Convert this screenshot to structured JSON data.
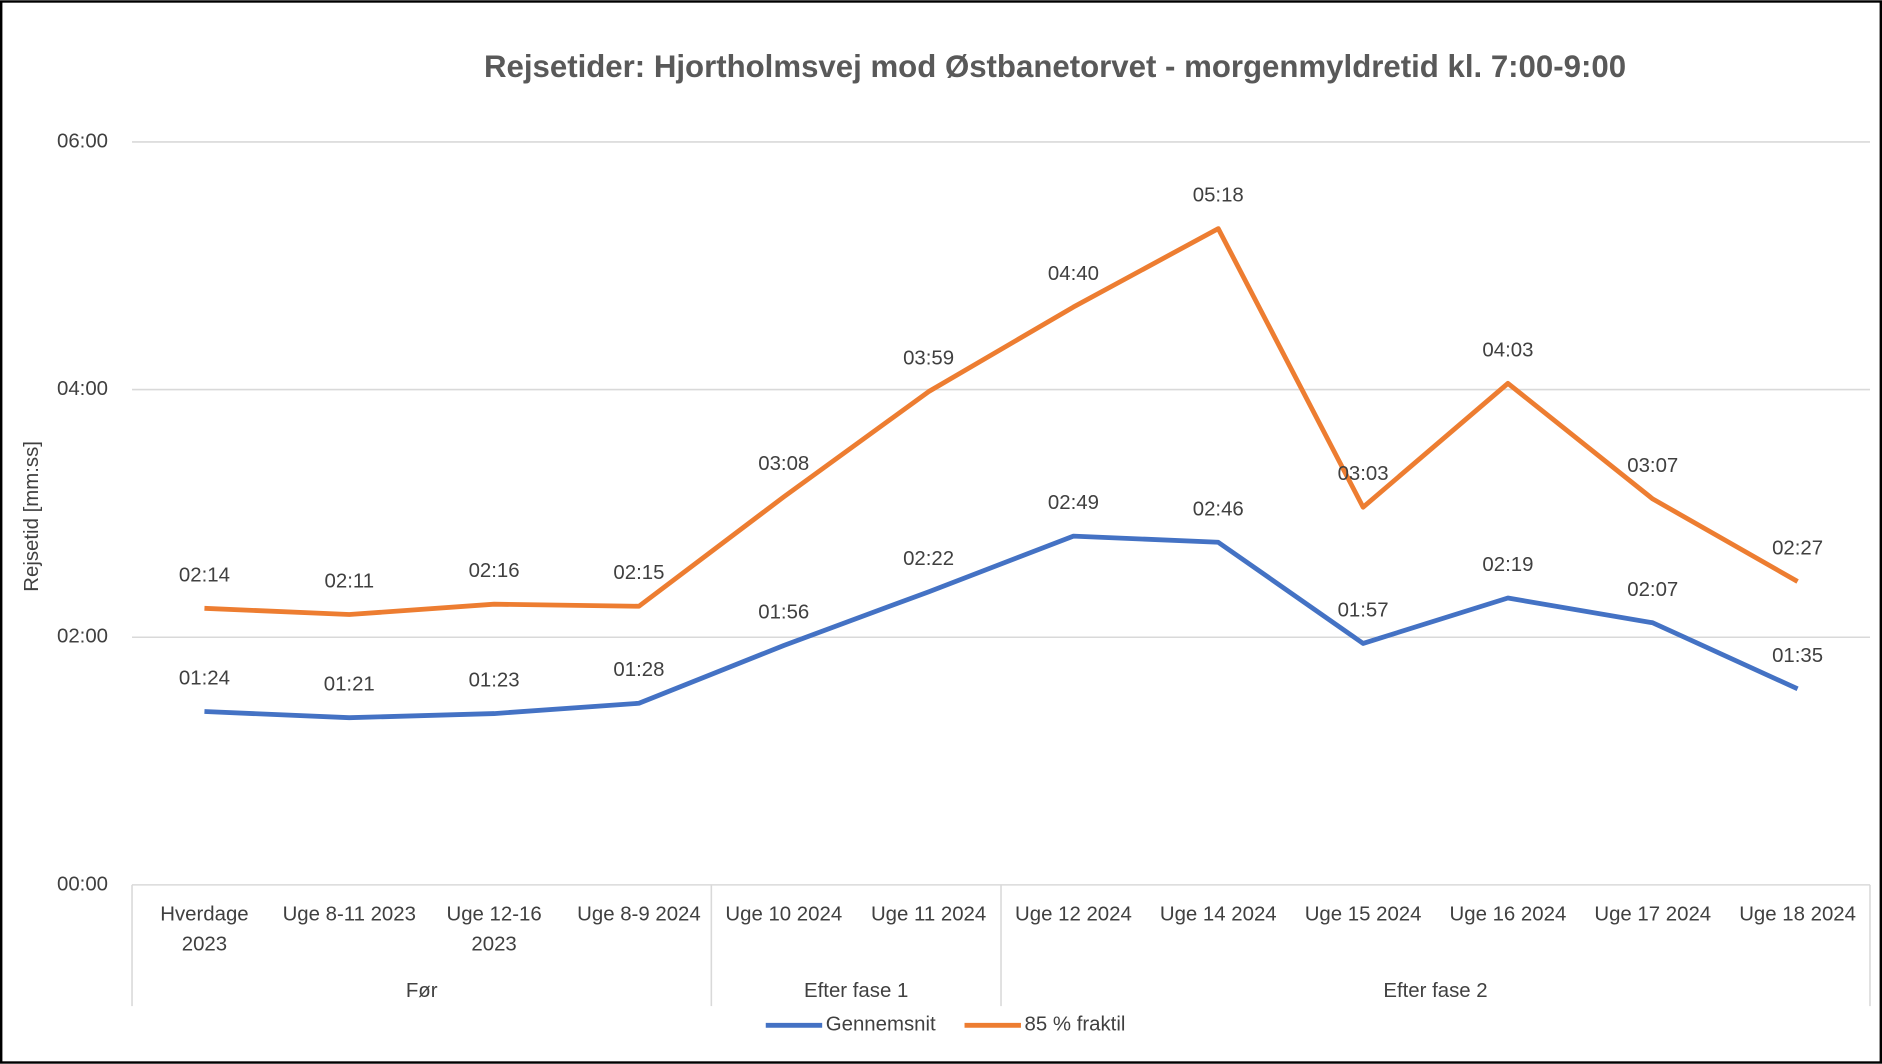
{
  "chart_data": {
    "type": "line",
    "title": "Rejsetider: Hjortholmsvej mod Østbanetorvet - morgenmyldretid kl. 7:00-9:00",
    "y_label": "Rejsetid [mm:ss]",
    "groups": [
      {
        "name": "Før",
        "categories": [
          [
            "Hverdage",
            "2023"
          ],
          [
            "Uge 8-11 2023"
          ],
          [
            "Uge 12-16",
            "2023"
          ],
          [
            "Uge 8-9 2024"
          ]
        ]
      },
      {
        "name": "Efter fase 1",
        "categories": [
          [
            "Uge 10 2024"
          ],
          [
            "Uge 11 2024"
          ]
        ]
      },
      {
        "name": "Efter fase 2",
        "categories": [
          [
            "Uge 12 2024"
          ],
          [
            "Uge 14 2024"
          ],
          [
            "Uge 15 2024"
          ],
          [
            "Uge 16 2024"
          ],
          [
            "Uge 17 2024"
          ],
          [
            "Uge 18 2024"
          ]
        ]
      }
    ],
    "series": [
      {
        "name": "Gennemsnit",
        "color": "#4472c4",
        "values": [
          84,
          81,
          83,
          88,
          116,
          142,
          169,
          166,
          117,
          139,
          127,
          95
        ],
        "value_labels": [
          "01:24",
          "01:21",
          "01:23",
          "01:28",
          "01:56",
          "02:22",
          "02:49",
          "02:46",
          "01:57",
          "02:19",
          "02:07",
          "01:35"
        ]
      },
      {
        "name": "85 % fraktil",
        "color": "#ed7d31",
        "values": [
          134,
          131,
          136,
          135,
          188,
          239,
          280,
          318,
          183,
          243,
          187,
          147
        ],
        "value_labels": [
          "02:14",
          "02:11",
          "02:16",
          "02:15",
          "03:08",
          "03:59",
          "04:40",
          "05:18",
          "03:03",
          "04:03",
          "03:07",
          "02:27"
        ]
      }
    ],
    "ylim": [
      0,
      360
    ],
    "yticks": [
      {
        "value": 0,
        "label": "00:00"
      },
      {
        "value": 120,
        "label": "02:00"
      },
      {
        "value": 240,
        "label": "04:00"
      },
      {
        "value": 360,
        "label": "06:00"
      }
    ],
    "grid": true,
    "legend": "bottom"
  }
}
